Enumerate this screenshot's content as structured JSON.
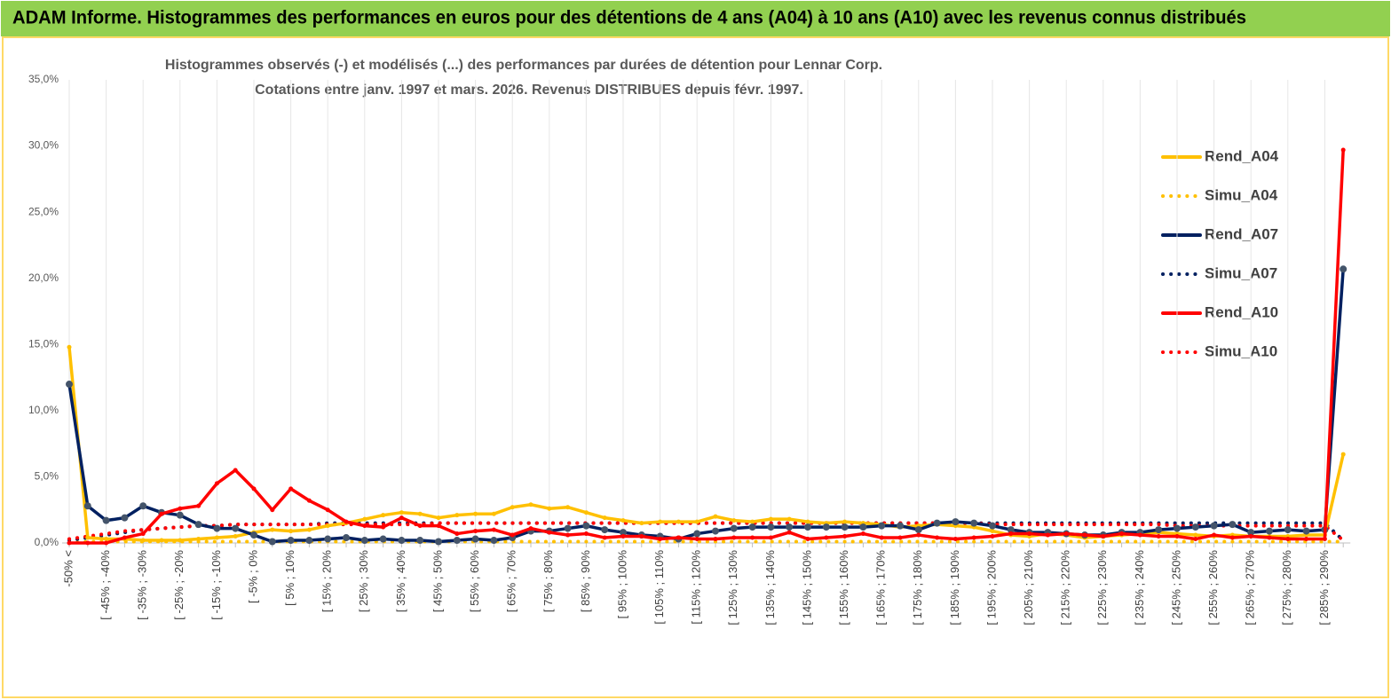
{
  "chart_data": {
    "type": "line",
    "title": "ADAM Informe. Histogrammes des performances en euros pour des détentions de 4 ans (A04) à 10 ans (A10) avec les revenus connus distribués",
    "subtitle": [
      "Histogrammes observés (-)  et modélisés (...) des performances par durées de détention pour Lennar Corp.",
      "Cotations entre janv. 1997 et mars. 2026. Revenus DISTRIBUES depuis févr. 1997."
    ],
    "categories": [
      "-50% <",
      null,
      "[ -45% ; -40%",
      null,
      "[ -35% ; -30%",
      null,
      "[ -25% ; -20%",
      null,
      "[ -15% ; -10%",
      null,
      "[ -5% ; 0%",
      null,
      "[ 5% ; 10%",
      null,
      "[ 15% ; 20%",
      null,
      "[ 25% ; 30%",
      null,
      "[ 35% ; 40%",
      null,
      "[ 45% ; 50%",
      null,
      "[ 55% ; 60%",
      null,
      "[ 65% ; 70%",
      null,
      "[ 75% ; 80%",
      null,
      "[ 85% ; 90%",
      null,
      "[ 95% ; 100%",
      null,
      "[ 105% ; 110%",
      null,
      "[ 115% ; 120%",
      null,
      "[ 125% ; 130%",
      null,
      "[ 135% ; 140%",
      null,
      "[ 145% ; 150%",
      null,
      "[ 155% ; 160%",
      null,
      "[ 165% ; 170%",
      null,
      "[ 175% ; 180%",
      null,
      "[ 185% ; 190%",
      null,
      "[ 195% ; 200%",
      null,
      "[ 205% ; 210%",
      null,
      "[ 215% ; 220%",
      null,
      "[ 225% ; 230%",
      null,
      "[ 235% ; 240%",
      null,
      "[ 245% ; 250%",
      null,
      "[ 255% ; 260%",
      null,
      "[ 265% ; 270%",
      null,
      "[ 275% ; 280%",
      null,
      "[ 285% ; 290%",
      null
    ],
    "series": [
      {
        "name": "Rend_A04",
        "color": "#ffc000",
        "style": "solid",
        "values": [
          14.8,
          0.4,
          0.3,
          0.3,
          0.2,
          0.2,
          0.2,
          0.3,
          0.4,
          0.5,
          0.8,
          1.0,
          0.9,
          1.0,
          1.3,
          1.5,
          1.8,
          2.1,
          2.3,
          2.2,
          1.9,
          2.1,
          2.2,
          2.2,
          2.7,
          2.9,
          2.6,
          2.7,
          2.3,
          1.9,
          1.7,
          1.5,
          1.6,
          1.6,
          1.6,
          2.0,
          1.7,
          1.6,
          1.8,
          1.8,
          1.6,
          1.5,
          1.6,
          1.5,
          1.4,
          1.2,
          1.3,
          1.4,
          1.3,
          1.2,
          0.9,
          0.6,
          0.5,
          0.7,
          0.6,
          0.4,
          0.5,
          0.6,
          0.7,
          0.8,
          0.7,
          0.6,
          0.5,
          0.6,
          0.5,
          0.5,
          0.5,
          0.6,
          0.6,
          6.7
        ]
      },
      {
        "name": "Simu_A04",
        "color": "#ffc000",
        "style": "dotted",
        "values": [
          0,
          0.1,
          0.1,
          0.1,
          0.1,
          0.1,
          0.1,
          0.1,
          0.1,
          0.1,
          0.1,
          0.1,
          0.1,
          0.1,
          0.1,
          0.1,
          0.1,
          0.1,
          0.1,
          0.1,
          0.1,
          0.1,
          0.1,
          0.1,
          0.1,
          0.1,
          0.1,
          0.1,
          0.1,
          0.1,
          0.1,
          0.1,
          0.1,
          0.1,
          0.1,
          0.1,
          0.1,
          0.1,
          0.1,
          0.1,
          0.1,
          0.1,
          0.1,
          0.1,
          0.1,
          0.1,
          0.1,
          0.1,
          0.1,
          0.1,
          0.1,
          0.1,
          0.1,
          0.1,
          0.1,
          0.1,
          0.1,
          0.1,
          0.1,
          0.1,
          0.1,
          0.1,
          0.1,
          0.1,
          0.1,
          0.1,
          0.1,
          0.1,
          0.1,
          0.1
        ]
      },
      {
        "name": "Rend_A07",
        "color": "#002060",
        "style": "solid",
        "marker": "#44546a",
        "values": [
          12.0,
          2.8,
          1.7,
          1.9,
          2.8,
          2.3,
          2.1,
          1.4,
          1.1,
          1.1,
          0.6,
          0.1,
          0.2,
          0.2,
          0.3,
          0.4,
          0.2,
          0.3,
          0.2,
          0.2,
          0.1,
          0.2,
          0.3,
          0.2,
          0.4,
          0.9,
          0.9,
          1.1,
          1.3,
          1.0,
          0.8,
          0.6,
          0.5,
          0.3,
          0.7,
          0.9,
          1.1,
          1.2,
          1.2,
          1.2,
          1.2,
          1.2,
          1.2,
          1.2,
          1.3,
          1.3,
          1.0,
          1.5,
          1.6,
          1.5,
          1.3,
          1.0,
          0.8,
          0.8,
          0.7,
          0.6,
          0.6,
          0.8,
          0.8,
          1.0,
          1.1,
          1.2,
          1.3,
          1.4,
          0.8,
          0.9,
          1.0,
          0.9,
          1.0,
          20.7
        ]
      },
      {
        "name": "Simu_A07",
        "color": "#002060",
        "style": "dotted",
        "values": [
          0.2,
          0.4,
          0.6,
          0.8,
          1.0,
          1.1,
          1.2,
          1.3,
          1.3,
          1.4,
          1.4,
          1.4,
          1.4,
          1.4,
          1.5,
          1.5,
          1.5,
          1.5,
          1.5,
          1.5,
          1.5,
          1.5,
          1.5,
          1.5,
          1.5,
          1.5,
          1.5,
          1.5,
          1.5,
          1.5,
          1.5,
          1.5,
          1.5,
          1.5,
          1.5,
          1.5,
          1.5,
          1.5,
          1.5,
          1.5,
          1.5,
          1.5,
          1.5,
          1.5,
          1.5,
          1.5,
          1.5,
          1.5,
          1.5,
          1.5,
          1.5,
          1.5,
          1.5,
          1.5,
          1.5,
          1.5,
          1.5,
          1.5,
          1.5,
          1.5,
          1.5,
          1.5,
          1.5,
          1.5,
          1.5,
          1.5,
          1.5,
          1.5,
          1.5,
          0.2
        ]
      },
      {
        "name": "Rend_A10",
        "color": "#ff0000",
        "style": "solid",
        "values": [
          0,
          0,
          0,
          0.4,
          0.7,
          2.2,
          2.6,
          2.8,
          4.5,
          5.5,
          4.1,
          2.5,
          4.1,
          3.2,
          2.5,
          1.6,
          1.3,
          1.2,
          1.9,
          1.3,
          1.3,
          0.7,
          0.9,
          1.0,
          0.6,
          1.1,
          0.8,
          0.6,
          0.7,
          0.4,
          0.5,
          0.5,
          0.3,
          0.4,
          0.3,
          0.3,
          0.4,
          0.4,
          0.4,
          0.8,
          0.3,
          0.4,
          0.5,
          0.7,
          0.4,
          0.4,
          0.6,
          0.4,
          0.3,
          0.4,
          0.5,
          0.7,
          0.7,
          0.6,
          0.7,
          0.6,
          0.5,
          0.7,
          0.6,
          0.5,
          0.5,
          0.3,
          0.6,
          0.4,
          0.5,
          0.4,
          0.3,
          0.3,
          0.3,
          29.7
        ]
      },
      {
        "name": "Simu_A10",
        "color": "#ff0000",
        "style": "dotted",
        "values": [
          0.3,
          0.5,
          0.7,
          0.9,
          1.0,
          1.1,
          1.2,
          1.3,
          1.3,
          1.4,
          1.4,
          1.4,
          1.4,
          1.4,
          1.4,
          1.4,
          1.4,
          1.4,
          1.4,
          1.4,
          1.5,
          1.5,
          1.5,
          1.5,
          1.5,
          1.5,
          1.5,
          1.5,
          1.5,
          1.5,
          1.5,
          1.5,
          1.5,
          1.5,
          1.5,
          1.5,
          1.5,
          1.5,
          1.5,
          1.5,
          1.5,
          1.5,
          1.5,
          1.5,
          1.5,
          1.5,
          1.5,
          1.5,
          1.5,
          1.5,
          1.4,
          1.4,
          1.4,
          1.4,
          1.4,
          1.4,
          1.4,
          1.4,
          1.4,
          1.4,
          1.3,
          1.3,
          1.3,
          1.3,
          1.3,
          1.3,
          1.3,
          1.3,
          1.3,
          0.2
        ]
      }
    ],
    "ylim": [
      0,
      35
    ],
    "yticks": [
      {
        "value": 0,
        "label": "0,0%"
      },
      {
        "value": 5,
        "label": "5,0%"
      },
      {
        "value": 10,
        "label": "10,0%"
      },
      {
        "value": 15,
        "label": "15,0%"
      },
      {
        "value": 20,
        "label": "20,0%"
      },
      {
        "value": 25,
        "label": "25,0%"
      },
      {
        "value": 30,
        "label": "30,0%"
      },
      {
        "value": 35,
        "label": "35,0%"
      }
    ],
    "grid": "x",
    "legend": "right"
  }
}
